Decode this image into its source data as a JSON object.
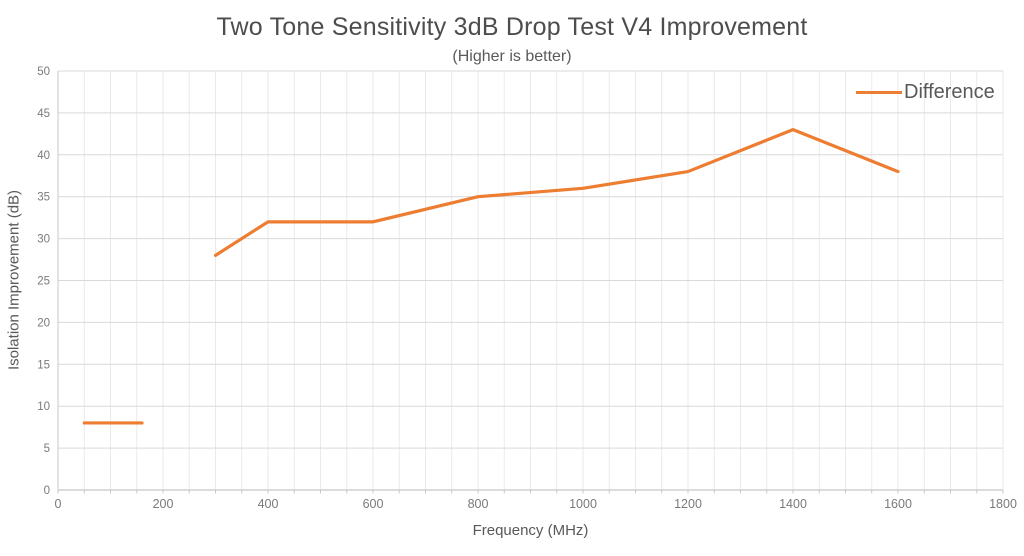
{
  "chart_data": {
    "type": "line",
    "title": "Two Tone Sensitivity 3dB Drop Test V4 Improvement",
    "subtitle": "(Higher is better)",
    "xlabel": "Frequency (MHz)",
    "ylabel": "Isolation Improvement (dB)",
    "xlim": [
      0,
      1800
    ],
    "ylim": [
      0,
      50
    ],
    "xticks": [
      0,
      200,
      400,
      600,
      800,
      1000,
      1200,
      1400,
      1600,
      1800
    ],
    "yticks": [
      0,
      5,
      10,
      15,
      20,
      25,
      30,
      35,
      40,
      45,
      50
    ],
    "x_minor_gridline_step": 50,
    "grid": true,
    "legend": {
      "label": "Difference",
      "position": "top-right-inside"
    },
    "series": [
      {
        "name": "Difference",
        "color": "#ED7D31",
        "segments": [
          {
            "x": [
              50,
              160
            ],
            "y": [
              8,
              8
            ]
          },
          {
            "x": [
              300,
              400,
              600,
              800,
              1000,
              1200,
              1400,
              1600
            ],
            "y": [
              28,
              32,
              32,
              35,
              36,
              38,
              43,
              38
            ]
          }
        ]
      }
    ]
  },
  "colors": {
    "accent": "#ED7D31",
    "title_text": "#4d4d4d",
    "subtitle_text": "#5a5a5a",
    "axis_title_text": "#595959",
    "tick_text": "#7a7a7a",
    "major_gridline": "#d9d9d9",
    "minor_gridline": "#eaeaea",
    "axis_line": "#c8c8c8",
    "background": "#ffffff"
  }
}
